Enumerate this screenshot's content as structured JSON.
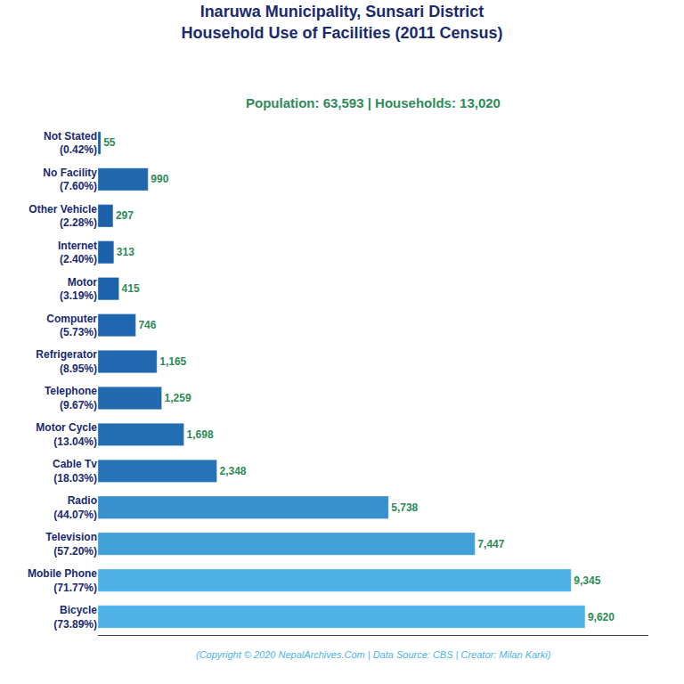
{
  "chart_data": {
    "type": "bar",
    "orientation": "horizontal",
    "title": "Inaruwa Municipality, Sunsari District\nHousehold Use of Facilities (2011 Census)",
    "subtitle": "Population: 63,593 | Households: 13,020",
    "annotations": [
      "(Copyright © 2020 NepalArchives.Com | Data Source: CBS | Creator: Milan Karki)"
    ],
    "categories": [
      "Not Stated\n(0.42%)",
      "No Facility\n(7.60%)",
      "Other Vehicle\n(2.28%)",
      "Internet\n(2.40%)",
      "Motor\n(3.19%)",
      "Computer\n(5.73%)",
      "Refrigerator\n(8.95%)",
      "Telephone\n(9.67%)",
      "Motor Cycle\n(13.04%)",
      "Cable Tv\n(18.03%)",
      "Radio\n(44.07%)",
      "Television\n(57.20%)",
      "Mobile Phone\n(71.77%)",
      "Bicycle\n(73.89%)"
    ],
    "values": [
      55,
      990,
      297,
      313,
      415,
      746,
      1165,
      1259,
      1698,
      2348,
      5738,
      7447,
      9345,
      9620
    ],
    "value_labels": [
      "55",
      "990",
      "297",
      "313",
      "415",
      "746",
      "1,165",
      "1,259",
      "1,698",
      "2,348",
      "5,738",
      "7,447",
      "9,345",
      "9,620"
    ],
    "data_labels": true,
    "colors": [
      "#1a5fa8",
      "#1f68ae",
      "#1c62aa",
      "#1c62aa",
      "#1c63ab",
      "#1e66ad",
      "#2069b0",
      "#216ab0",
      "#236eb3",
      "#2674b7",
      "#3891cd",
      "#41a0d8",
      "#4cb1e4",
      "#4db3e6"
    ],
    "xlim": [
      0,
      10870.6
    ],
    "grid": false,
    "tick_labels": "y"
  }
}
